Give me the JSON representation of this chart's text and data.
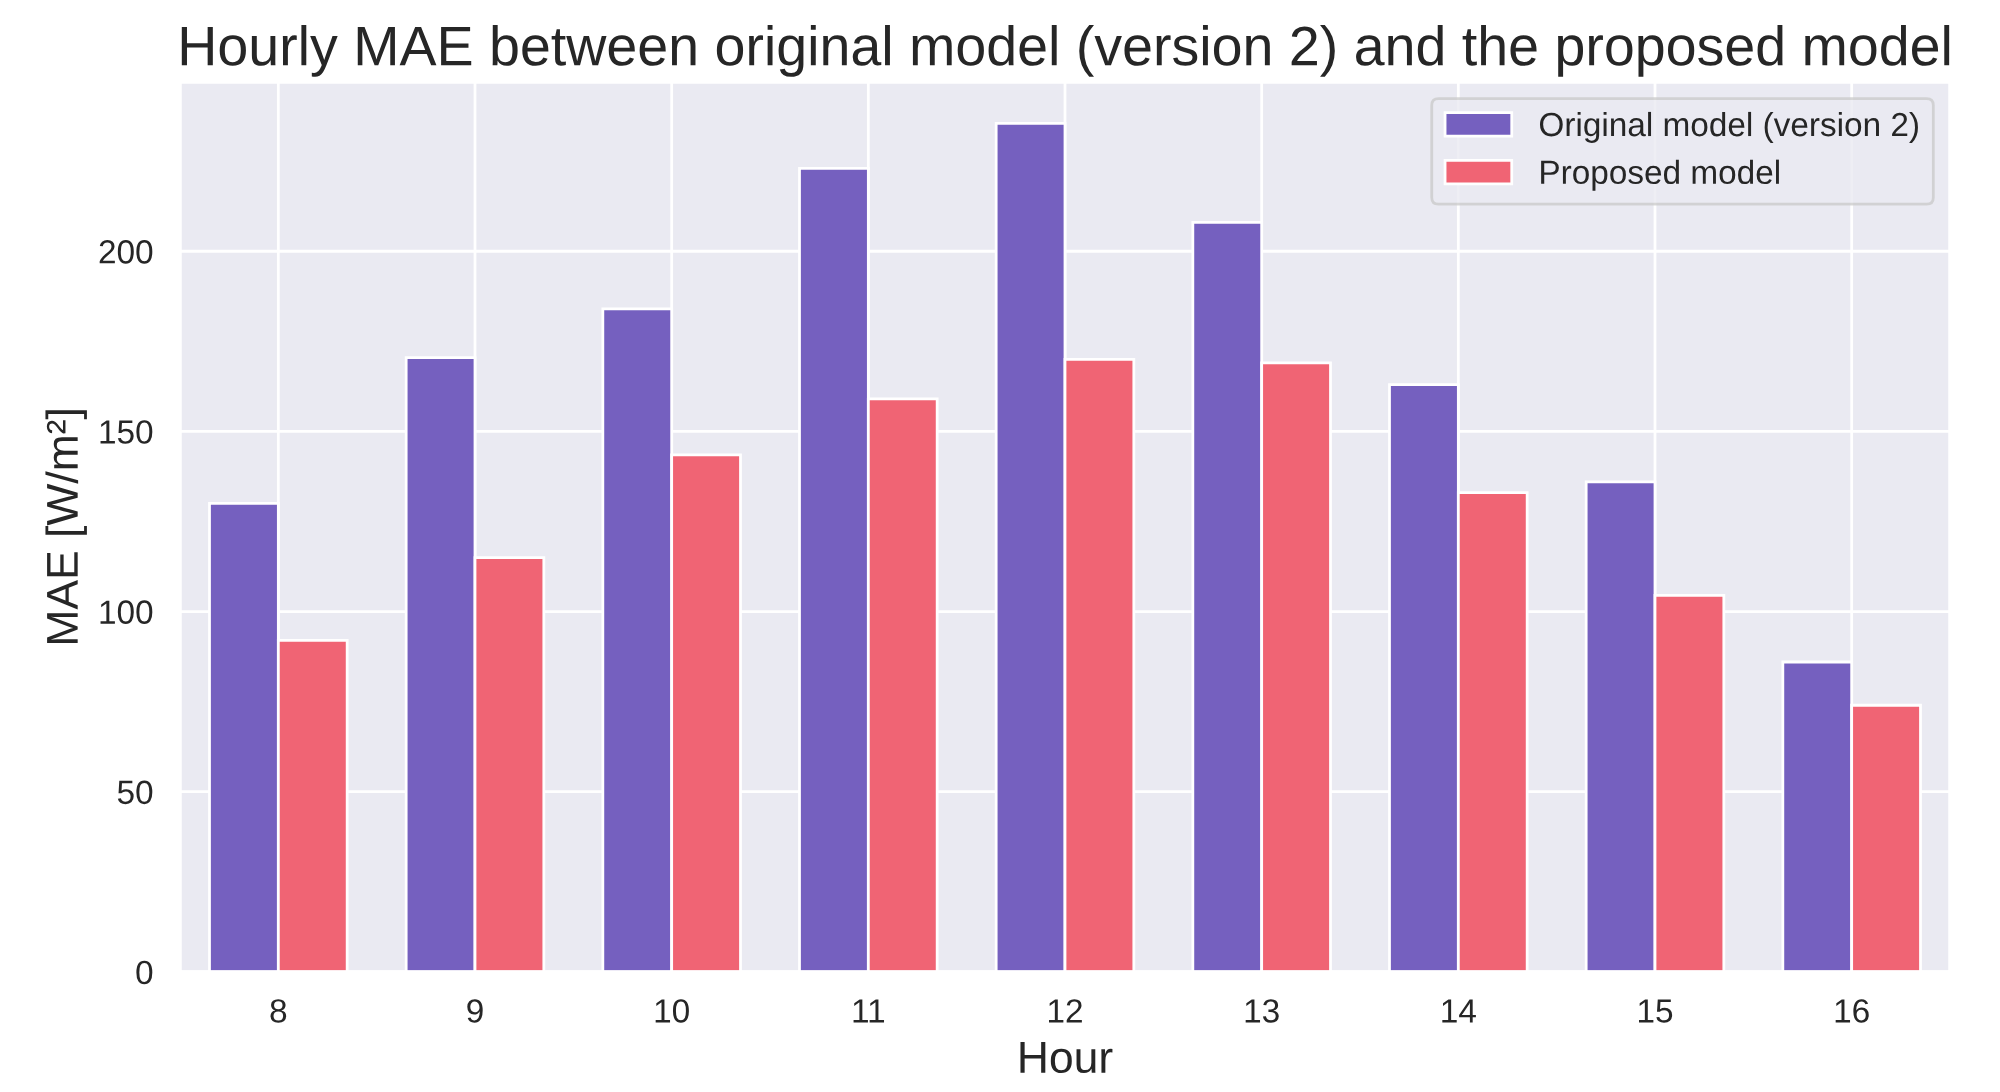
{
  "chart_data": {
    "type": "bar",
    "title": "Hourly MAE between original model (version 2) and the proposed model",
    "xlabel": "Hour",
    "ylabel": "MAE [W/m²]",
    "categories": [
      "8",
      "9",
      "10",
      "11",
      "12",
      "13",
      "14",
      "15",
      "16"
    ],
    "series": [
      {
        "name": "Original model (version 2)",
        "color": "#7560bf",
        "values": [
          130,
          170.5,
          184,
          223,
          235.5,
          208,
          163,
          136,
          86
        ]
      },
      {
        "name": "Proposed model",
        "color": "#f06474",
        "values": [
          92,
          115,
          143.5,
          159,
          170,
          169,
          133,
          104.5,
          74
        ]
      }
    ],
    "ylim": [
      0,
      247
    ],
    "yticks": [
      0,
      50,
      100,
      150,
      200
    ],
    "grid": true,
    "legend": "upper right"
  }
}
